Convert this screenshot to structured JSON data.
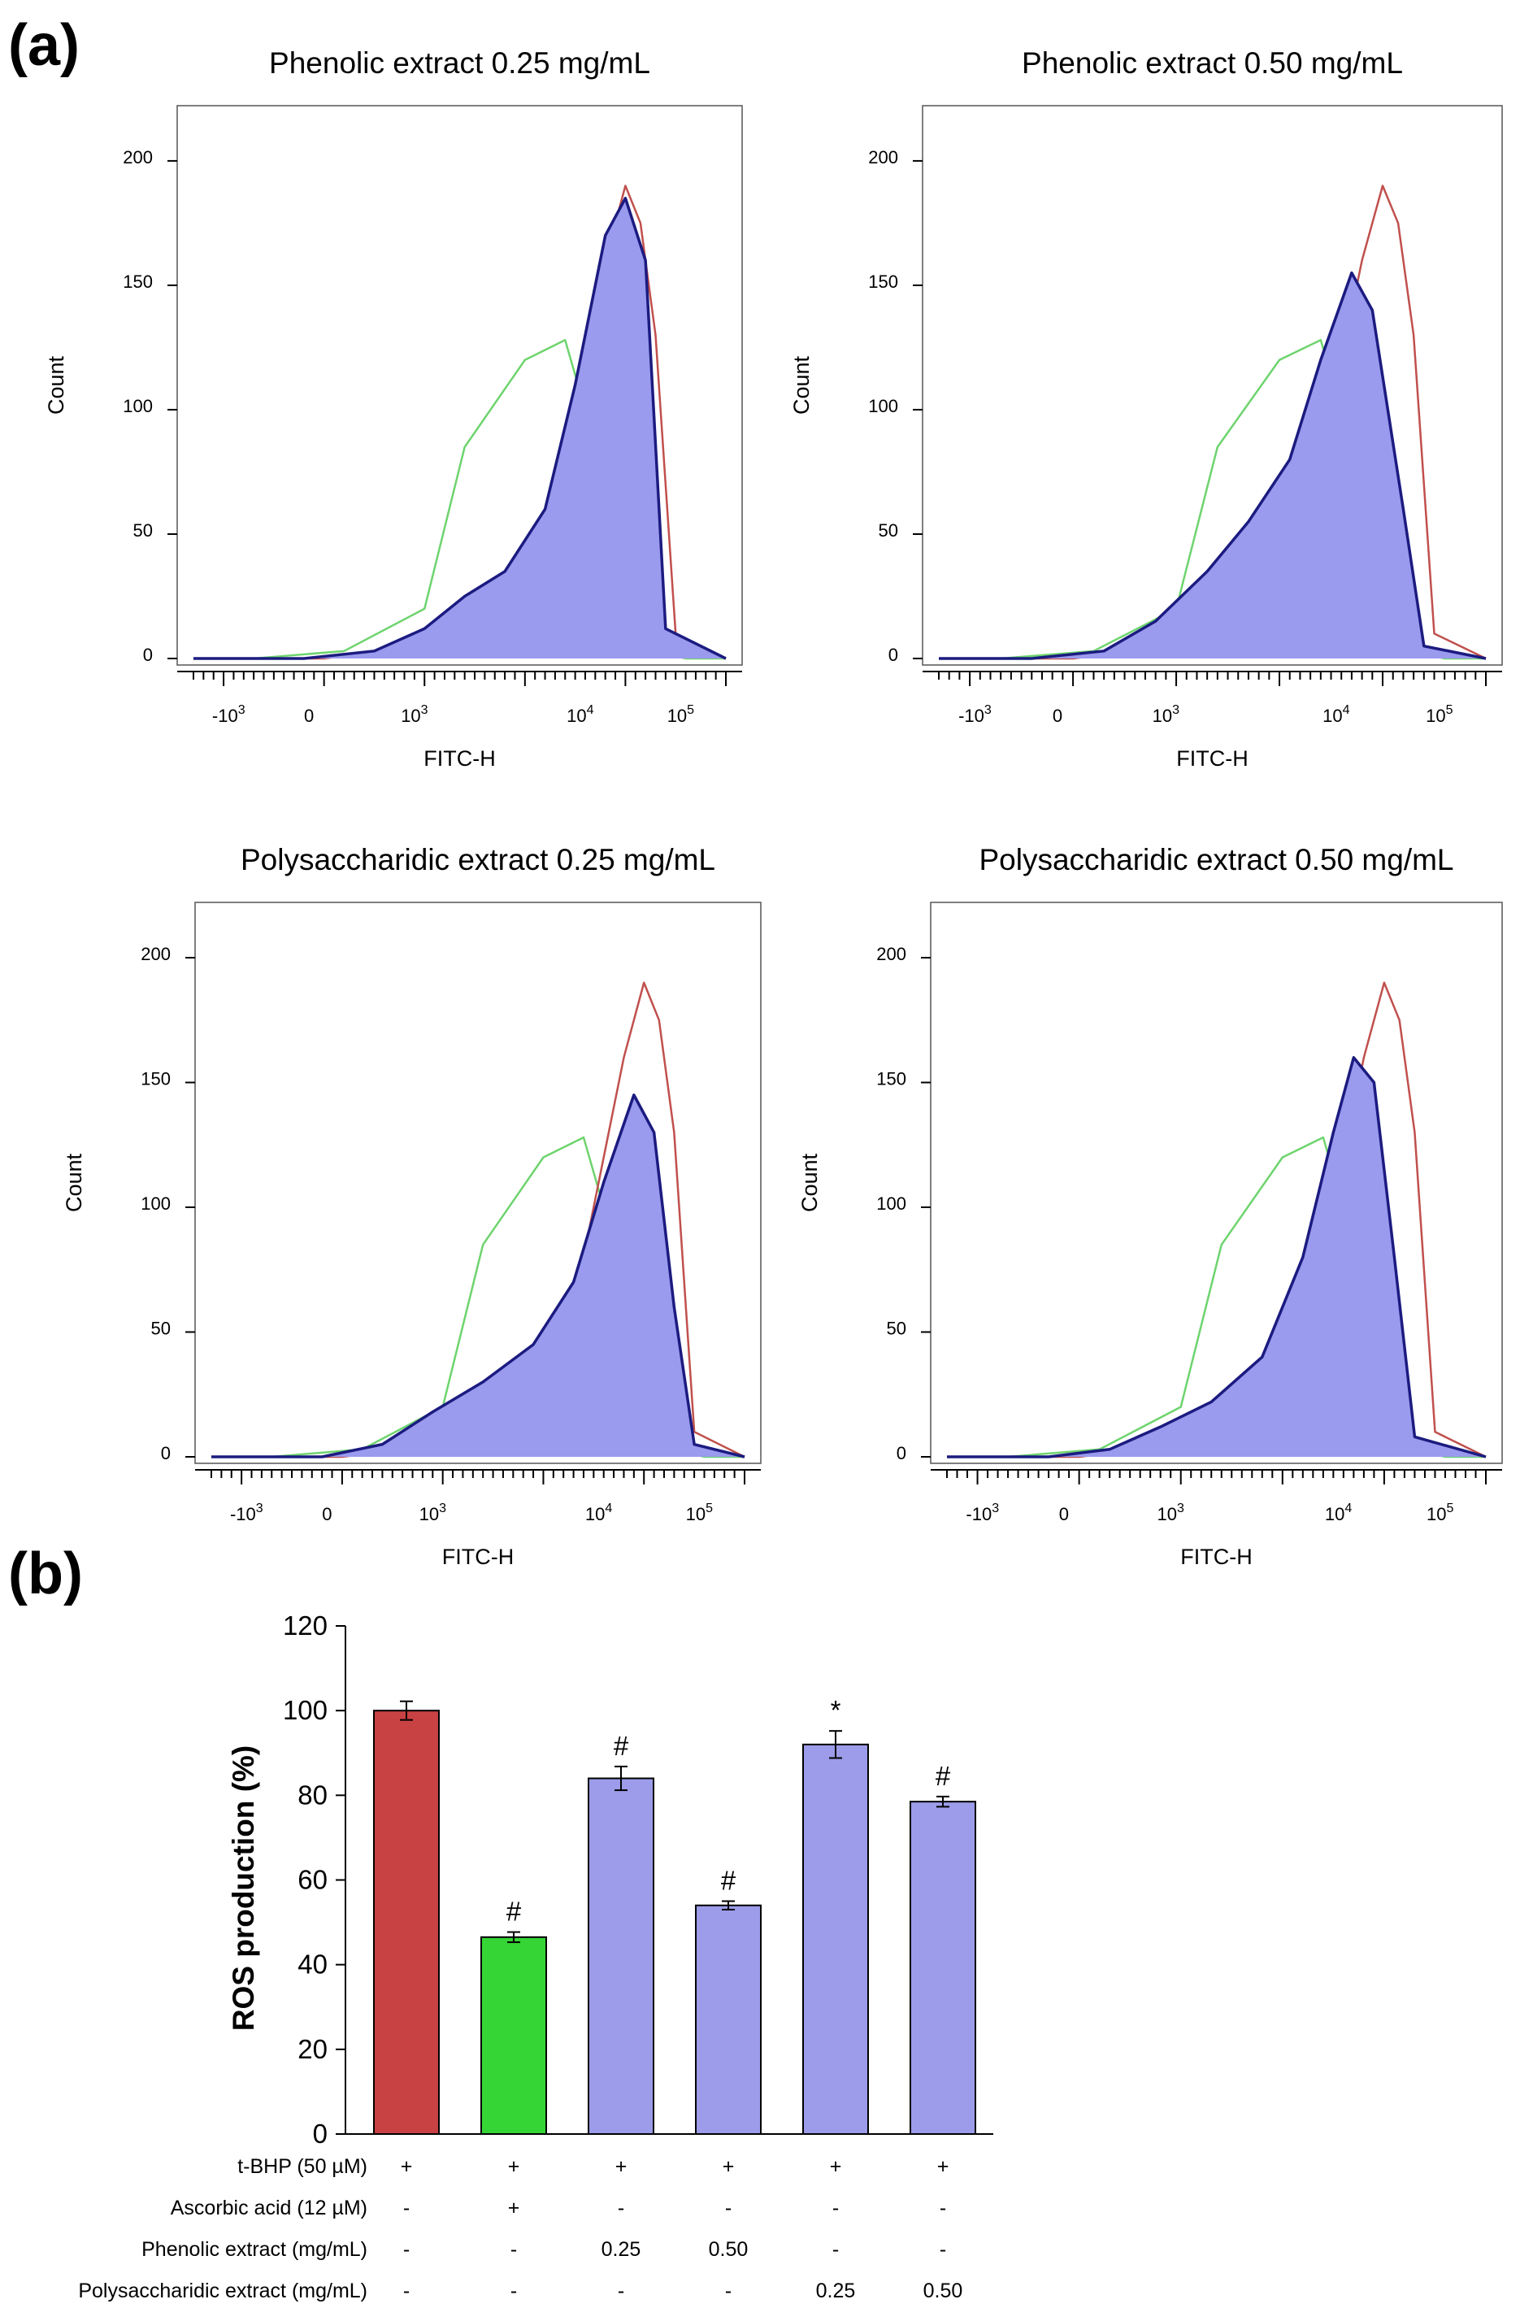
{
  "panel_labels": {
    "a": "(a)",
    "b": "(b)"
  },
  "colors": {
    "control": "#c84244",
    "ascorbic": "#35d535",
    "extract": "#9c9cea",
    "unstained_line": "#6ed46e",
    "tbhp_line": "#c0504d",
    "sample_line": "#1b1b80",
    "sample_fill": "#9a9aee"
  },
  "chart_data": [
    {
      "type": "area",
      "title": "Phenolic extract 0.25 mg/mL",
      "xlabel": "FITC-H",
      "ylabel": "Count",
      "y_ticks": [
        "0",
        "50",
        "100",
        "150",
        "200"
      ],
      "x_ticks": [
        "-10^3",
        "0",
        "10^3",
        "10^4",
        "10^5"
      ],
      "ylim": [
        0,
        215
      ],
      "series": [
        {
          "x": [
            -0.3,
            0.3,
            1.2,
            2.0,
            2.4,
            3.0,
            3.4,
            3.6,
            3.8,
            4.0,
            4.2,
            4.6,
            5.0
          ],
          "values": [
            0,
            0,
            3,
            20,
            85,
            120,
            128,
            100,
            55,
            20,
            4,
            0,
            0
          ]
        },
        {
          "x": [
            -0.3,
            1.0,
            2.0,
            2.6,
            3.0,
            3.3,
            3.6,
            3.8,
            4.0,
            4.15,
            4.3,
            4.5,
            5.0
          ],
          "values": [
            0,
            0,
            5,
            15,
            30,
            60,
            120,
            160,
            190,
            175,
            130,
            10,
            0
          ]
        },
        {
          "x": [
            -0.3,
            0.8,
            1.5,
            2.0,
            2.4,
            2.8,
            3.2,
            3.5,
            3.8,
            4.0,
            4.2,
            4.4,
            5.0
          ],
          "values": [
            0,
            0,
            3,
            12,
            25,
            35,
            60,
            110,
            170,
            185,
            160,
            12,
            0
          ]
        }
      ]
    },
    {
      "type": "area",
      "title": "Phenolic extract 0.50 mg/mL",
      "xlabel": "FITC-H",
      "ylabel": "Count",
      "y_ticks": [
        "0",
        "50",
        "100",
        "150",
        "200"
      ],
      "x_ticks": [
        "-10^3",
        "0",
        "10^3",
        "10^4",
        "10^5"
      ],
      "ylim": [
        0,
        215
      ],
      "series": [
        {
          "x": [
            -0.3,
            0.3,
            1.2,
            2.0,
            2.4,
            3.0,
            3.4,
            3.6,
            3.8,
            4.0,
            4.2,
            4.6,
            5.0
          ],
          "values": [
            0,
            0,
            3,
            20,
            85,
            120,
            128,
            100,
            55,
            20,
            4,
            0,
            0
          ]
        },
        {
          "x": [
            -0.3,
            1.0,
            2.0,
            2.6,
            3.0,
            3.3,
            3.6,
            3.8,
            4.0,
            4.15,
            4.3,
            4.5,
            5.0
          ],
          "values": [
            0,
            0,
            5,
            15,
            30,
            60,
            120,
            160,
            190,
            175,
            130,
            10,
            0
          ]
        },
        {
          "x": [
            -0.3,
            0.6,
            1.3,
            1.8,
            2.3,
            2.7,
            3.1,
            3.4,
            3.7,
            3.9,
            4.2,
            4.4,
            5.0
          ],
          "values": [
            0,
            0,
            3,
            15,
            35,
            55,
            80,
            120,
            155,
            140,
            60,
            5,
            0
          ]
        }
      ]
    },
    {
      "type": "area",
      "title": "Polysaccharidic extract 0.25 mg/mL",
      "xlabel": "FITC-H",
      "ylabel": "Count",
      "y_ticks": [
        "0",
        "50",
        "100",
        "150",
        "200"
      ],
      "x_ticks": [
        "-10^3",
        "0",
        "10^3",
        "10^4",
        "10^5"
      ],
      "ylim": [
        0,
        215
      ],
      "series": [
        {
          "x": [
            -0.3,
            0.3,
            1.2,
            2.0,
            2.4,
            3.0,
            3.4,
            3.6,
            3.8,
            4.0,
            4.2,
            4.6,
            5.0
          ],
          "values": [
            0,
            0,
            3,
            20,
            85,
            120,
            128,
            100,
            55,
            20,
            4,
            0,
            0
          ]
        },
        {
          "x": [
            -0.3,
            1.0,
            2.0,
            2.6,
            3.0,
            3.3,
            3.6,
            3.8,
            4.0,
            4.15,
            4.3,
            4.5,
            5.0
          ],
          "values": [
            0,
            0,
            5,
            15,
            30,
            60,
            120,
            160,
            190,
            175,
            130,
            10,
            0
          ]
        },
        {
          "x": [
            -0.3,
            0.8,
            1.4,
            1.9,
            2.4,
            2.9,
            3.3,
            3.6,
            3.9,
            4.1,
            4.3,
            4.5,
            5.0
          ],
          "values": [
            0,
            0,
            5,
            18,
            30,
            45,
            70,
            110,
            145,
            130,
            60,
            5,
            0
          ]
        }
      ]
    },
    {
      "type": "area",
      "title": "Polysaccharidic extract 0.50 mg/mL",
      "xlabel": "FITC-H",
      "ylabel": "Count",
      "y_ticks": [
        "0",
        "50",
        "100",
        "150",
        "200"
      ],
      "x_ticks": [
        "-10^3",
        "0",
        "10^3",
        "10^4",
        "10^5"
      ],
      "ylim": [
        0,
        215
      ],
      "series": [
        {
          "x": [
            -0.3,
            0.3,
            1.2,
            2.0,
            2.4,
            3.0,
            3.4,
            3.6,
            3.8,
            4.0,
            4.2,
            4.6,
            5.0
          ],
          "values": [
            0,
            0,
            3,
            20,
            85,
            120,
            128,
            100,
            55,
            20,
            4,
            0,
            0
          ]
        },
        {
          "x": [
            -0.3,
            1.0,
            2.0,
            2.6,
            3.0,
            3.3,
            3.6,
            3.8,
            4.0,
            4.15,
            4.3,
            4.5,
            5.0
          ],
          "values": [
            0,
            0,
            5,
            15,
            30,
            60,
            120,
            160,
            190,
            175,
            130,
            10,
            0
          ]
        },
        {
          "x": [
            -0.3,
            0.7,
            1.3,
            1.8,
            2.3,
            2.8,
            3.2,
            3.5,
            3.7,
            3.9,
            4.1,
            4.3,
            5.0
          ],
          "values": [
            0,
            0,
            3,
            12,
            22,
            40,
            80,
            130,
            160,
            150,
            80,
            8,
            0
          ]
        }
      ]
    },
    {
      "type": "bar",
      "ylabel": "ROS production (%)",
      "ylim": [
        0,
        120
      ],
      "y_ticks": [
        "0",
        "20",
        "40",
        "60",
        "80",
        "100",
        "120"
      ],
      "values": [
        100,
        46.5,
        84,
        54,
        92,
        78.5
      ],
      "errors": [
        2.2,
        1.2,
        2.8,
        1.0,
        3.2,
        1.2
      ],
      "markers": [
        "",
        "#",
        "#",
        "#",
        "*",
        "#"
      ],
      "treatment_table": {
        "rows": [
          {
            "label": "t-BHP (50 µM)",
            "cells": [
              "+",
              "+",
              "+",
              "+",
              "+",
              "+"
            ]
          },
          {
            "label": "Ascorbic acid (12 µM)",
            "cells": [
              "-",
              "+",
              "-",
              "-",
              "-",
              "-"
            ]
          },
          {
            "label": "Phenolic extract (mg/mL)",
            "cells": [
              "-",
              "-",
              "0.25",
              "0.50",
              "-",
              "-"
            ]
          },
          {
            "label": "Polysaccharidic extract (mg/mL)",
            "cells": [
              "-",
              "-",
              "-",
              "-",
              "0.25",
              "0.50"
            ]
          }
        ]
      }
    }
  ]
}
